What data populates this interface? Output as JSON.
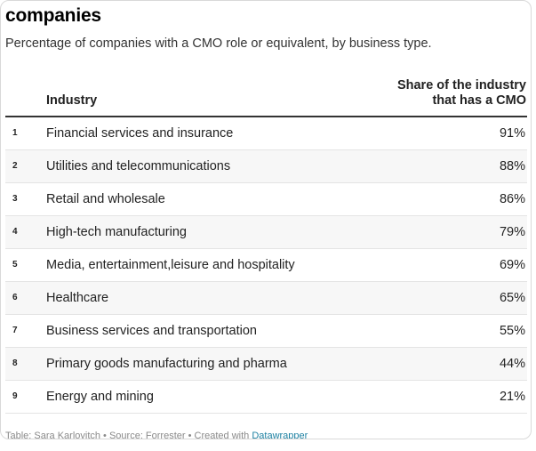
{
  "header": {
    "title": "companies",
    "subtitle": "Percentage of companies with a CMO role or equivalent, by business type."
  },
  "chart_data": {
    "type": "table",
    "columns": {
      "industry": "Industry",
      "share_line1": "Share of the industry",
      "share_line2": "that has a CMO"
    },
    "rows": [
      {
        "rank": "1",
        "industry": "Financial services and insurance",
        "value": "91%"
      },
      {
        "rank": "2",
        "industry": "Utilities and telecommunications",
        "value": "88%"
      },
      {
        "rank": "3",
        "industry": "Retail and wholesale",
        "value": "86%"
      },
      {
        "rank": "4",
        "industry": "High-tech manufacturing",
        "value": "79%"
      },
      {
        "rank": "5",
        "industry": "Media, entertainment,leisure and hospitality",
        "value": "69%"
      },
      {
        "rank": "6",
        "industry": "Healthcare",
        "value": "65%"
      },
      {
        "rank": "7",
        "industry": "Business services and transportation",
        "value": "55%"
      },
      {
        "rank": "8",
        "industry": "Primary goods manufacturing and pharma",
        "value": "44%"
      },
      {
        "rank": "9",
        "industry": "Energy and mining",
        "value": "21%"
      }
    ]
  },
  "footer": {
    "credit": "Table: Sara Karlovitch • Source: Forrester • Created with ",
    "link_label": "Datawrapper"
  },
  "colors": {
    "header_rule": "#333333",
    "row_stripe": "#f7f7f7",
    "row_divider": "#e4e4e4",
    "link": "#1d81a2"
  }
}
